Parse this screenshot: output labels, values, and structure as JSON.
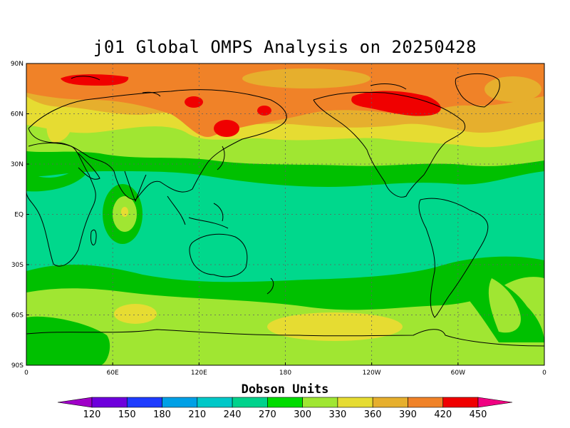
{
  "title": "j01 Global OMPS Analysis on 20250428",
  "map": {
    "lat_labels": [
      "90N",
      "60N",
      "30N",
      "EQ",
      "30S",
      "60S",
      "90S"
    ],
    "lon_labels": [
      "0",
      "60E",
      "120E",
      "180",
      "120W",
      "60W",
      "0"
    ],
    "colors": {
      "c270": "#00d88c",
      "c300": "#00c000",
      "c330": "#a0e632",
      "c360": "#e6dc32",
      "c390": "#e6af2d",
      "c420": "#f08228",
      "c450": "#f00000",
      "coast": "#000000",
      "grid": "#606060"
    }
  },
  "colorbar": {
    "title": "Dobson Units",
    "labels": [
      "120",
      "150",
      "180",
      "210",
      "240",
      "270",
      "300",
      "330",
      "360",
      "390",
      "420",
      "450"
    ],
    "colors": [
      "#a000c8",
      "#6e00dc",
      "#1e3cff",
      "#00a0e6",
      "#00c8c8",
      "#00d28c",
      "#00dc00",
      "#a0e632",
      "#e6dc32",
      "#e6af2d",
      "#f08228",
      "#f00000",
      "#f00082"
    ]
  }
}
